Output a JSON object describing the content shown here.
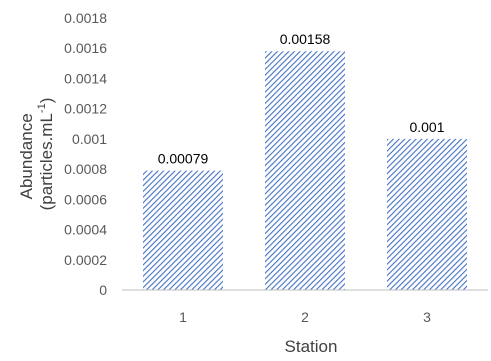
{
  "chart_data": {
    "type": "bar",
    "categories": [
      "1",
      "2",
      "3"
    ],
    "values": [
      0.00079,
      0.00158,
      0.001
    ],
    "data_labels": [
      "0.00079",
      "0.00158",
      "0.001"
    ],
    "xlabel": "Station",
    "ylabel_line1": "Abundance",
    "ylabel_line2_base": "(particles.mL",
    "ylabel_line2_sup": "-1",
    "ylabel_line2_end": ")",
    "ylim": [
      0,
      0.0018
    ],
    "yticks": [
      "0",
      "0.0002",
      "0.0004",
      "0.0006",
      "0.0008",
      "0.001",
      "0.0012",
      "0.0014",
      "0.0016",
      "0.0018"
    ],
    "grid": false,
    "legend": "none",
    "bar_pattern": "diagonal hatch",
    "bar_color": "#4472C4"
  }
}
